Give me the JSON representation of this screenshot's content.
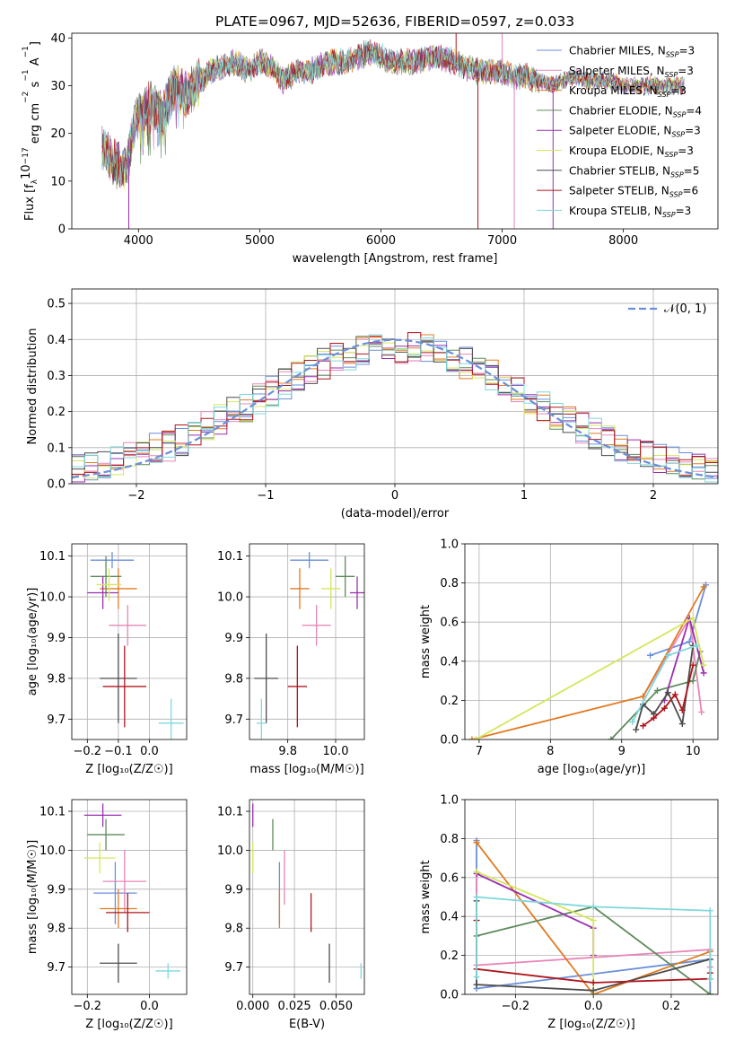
{
  "colors": {
    "Chabrier MILES": "#6a8fdc",
    "Salpeter MILES": "#e985b8",
    "Kroupa MILES": "#e07b22",
    "Chabrier ELODIE": "#5f8a5c",
    "Salpeter ELODIE": "#9a2fb0",
    "Kroupa ELODIE": "#d6e65c",
    "Chabrier STELIB": "#4d4d4d",
    "Salpeter STELIB": "#b0161c",
    "Kroupa STELIB": "#7fd8dc",
    "normal_curve": "#6a8fdc",
    "grid": "#b0b0b0"
  },
  "chart_data": [
    {
      "id": "spectrum",
      "type": "line",
      "title": "PLATE=0967, MJD=52636, FIBERID=0597, z=0.033",
      "xlabel": "wavelength [Angstrom, rest frame]",
      "ylabel_parts": [
        "Flux [f",
        "λ",
        "10",
        "−17",
        " erg cm",
        "−2",
        " s",
        "−1",
        " A",
        "−1",
        "]"
      ],
      "xlim": [
        3450,
        8780
      ],
      "ylim": [
        0,
        41
      ],
      "xticks": [
        4000,
        5000,
        6000,
        7000,
        8000
      ],
      "yticks": [
        0,
        10,
        20,
        30,
        40
      ],
      "grid": false,
      "legend_position": "top-right",
      "legend": [
        {
          "base": "Chabrier MILES, N",
          "sub": "SSP",
          "tail": "=3"
        },
        {
          "base": "Salpeter MILES, N",
          "sub": "SSP",
          "tail": "=3"
        },
        {
          "base": "Kroupa MILES, N",
          "sub": "SSP",
          "tail": "=3"
        },
        {
          "base": "Chabrier ELODIE, N",
          "sub": "SSP",
          "tail": "=4"
        },
        {
          "base": "Salpeter ELODIE, N",
          "sub": "SSP",
          "tail": "=3"
        },
        {
          "base": "Kroupa ELODIE, N",
          "sub": "SSP",
          "tail": "=3"
        },
        {
          "base": "Chabrier STELIB, N",
          "sub": "SSP",
          "tail": "=5"
        },
        {
          "base": "Salpeter STELIB, N",
          "sub": "SSP",
          "tail": "=6"
        },
        {
          "base": "Kroupa STELIB, N",
          "sub": "SSP",
          "tail": "=3"
        }
      ],
      "envelope": {
        "x": [
          3700,
          3800,
          3900,
          3950,
          4000,
          4100,
          4200,
          4300,
          4400,
          4500,
          4600,
          4700,
          4800,
          4900,
          5000,
          5100,
          5200,
          5300,
          5400,
          5500,
          5600,
          5700,
          5800,
          5900,
          6000,
          6100,
          6200,
          6300,
          6400,
          6500,
          6600,
          6700,
          6800,
          6900,
          7000,
          7100,
          7200,
          7300,
          7400,
          7500,
          7600,
          7700,
          7800,
          7900,
          8000,
          8100,
          8200,
          8300,
          8400,
          8500
        ],
        "y": [
          17,
          14,
          12,
          20,
          24,
          26,
          24,
          30,
          28,
          31,
          33,
          34,
          35,
          33,
          35,
          34,
          31,
          33,
          33,
          34,
          35,
          35,
          36,
          37,
          36,
          35,
          35,
          35,
          36,
          36,
          35,
          34,
          33,
          33,
          33,
          32,
          32,
          31,
          30,
          31,
          32,
          31,
          31,
          31,
          30,
          30,
          30,
          30,
          30,
          30
        ]
      },
      "outliers": [
        {
          "x": 3920,
          "y": 0
        },
        {
          "x": 6800,
          "y": 0
        },
        {
          "x": 7100,
          "y": 0
        },
        {
          "x": 7420,
          "y": 0
        },
        {
          "x": 6620,
          "y": 41
        },
        {
          "x": 7000,
          "y": 41
        }
      ]
    },
    {
      "id": "residuals",
      "type": "histogram",
      "xlabel": "(data-model)/error",
      "ylabel": "Normed distribution",
      "xlim": [
        -2.5,
        2.5
      ],
      "ylim": [
        0,
        0.54
      ],
      "xticks": [
        -2,
        -1,
        0,
        1,
        2
      ],
      "yticks": [
        0.0,
        0.1,
        0.2,
        0.3,
        0.4,
        0.5
      ],
      "grid": true,
      "bin_width": 0.1,
      "legend_position": "top-right",
      "reference_curve": {
        "name": "𝒩(0, 1)",
        "mean": 0,
        "sigma": 1
      }
    },
    {
      "id": "age_vs_Z",
      "type": "scatter",
      "xlabel": "Z [log₁₀(Z/Z☉)]",
      "ylabel": "age  [log₁₀(age/yr)]",
      "xlim": [
        -0.25,
        0.12
      ],
      "ylim": [
        9.65,
        10.13
      ],
      "xticks": [
        -0.2,
        -0.1,
        0.0
      ],
      "yticks": [
        9.7,
        9.8,
        9.9,
        10.0,
        10.1
      ],
      "grid": true,
      "points": [
        {
          "series": "Chabrier MILES",
          "x": -0.12,
          "y": 10.09,
          "xerr": 0.07,
          "yerr": 0.02
        },
        {
          "series": "Salpeter MILES",
          "x": -0.07,
          "y": 9.93,
          "xerr": 0.06,
          "yerr": 0.05
        },
        {
          "series": "Kroupa MILES",
          "x": -0.1,
          "y": 10.02,
          "xerr": 0.06,
          "yerr": 0.05
        },
        {
          "series": "Chabrier ELODIE",
          "x": -0.14,
          "y": 10.05,
          "xerr": 0.05,
          "yerr": 0.05
        },
        {
          "series": "Salpeter ELODIE",
          "x": -0.15,
          "y": 10.01,
          "xerr": 0.05,
          "yerr": 0.04
        },
        {
          "series": "Kroupa ELODIE",
          "x": -0.13,
          "y": 10.03,
          "xerr": 0.04,
          "yerr": 0.04
        },
        {
          "series": "Chabrier STELIB",
          "x": -0.1,
          "y": 9.8,
          "xerr": 0.06,
          "yerr": 0.11
        },
        {
          "series": "Salpeter STELIB",
          "x": -0.08,
          "y": 9.78,
          "xerr": 0.07,
          "yerr": 0.1
        },
        {
          "series": "Kroupa STELIB",
          "x": 0.07,
          "y": 9.69,
          "xerr": 0.04,
          "yerr": 0.06
        }
      ]
    },
    {
      "id": "age_vs_mass",
      "type": "scatter",
      "xlabel": "mass [log₁₀(M/M☉)]",
      "ylabel": "",
      "xlim": [
        9.64,
        10.12
      ],
      "ylim": [
        9.65,
        10.13
      ],
      "xticks": [
        9.8,
        10.0
      ],
      "yticks": [
        9.7,
        9.8,
        9.9,
        10.0,
        10.1
      ],
      "grid": true,
      "points": [
        {
          "series": "Chabrier MILES",
          "x": 9.89,
          "y": 10.09,
          "xerr": 0.08,
          "yerr": 0.02
        },
        {
          "series": "Salpeter MILES",
          "x": 9.92,
          "y": 9.93,
          "xerr": 0.06,
          "yerr": 0.05
        },
        {
          "series": "Kroupa MILES",
          "x": 9.85,
          "y": 10.02,
          "xerr": 0.04,
          "yerr": 0.05
        },
        {
          "series": "Chabrier ELODIE",
          "x": 10.04,
          "y": 10.05,
          "xerr": 0.04,
          "yerr": 0.05
        },
        {
          "series": "Salpeter ELODIE",
          "x": 10.09,
          "y": 10.01,
          "xerr": 0.03,
          "yerr": 0.04
        },
        {
          "series": "Kroupa ELODIE",
          "x": 9.98,
          "y": 10.02,
          "xerr": 0.04,
          "yerr": 0.05
        },
        {
          "series": "Chabrier STELIB",
          "x": 9.71,
          "y": 9.8,
          "xerr": 0.05,
          "yerr": 0.11
        },
        {
          "series": "Salpeter STELIB",
          "x": 9.84,
          "y": 9.78,
          "xerr": 0.04,
          "yerr": 0.1
        },
        {
          "series": "Kroupa STELIB",
          "x": 9.69,
          "y": 9.69,
          "xerr": 0.02,
          "yerr": 0.06
        }
      ]
    },
    {
      "id": "weight_vs_age",
      "type": "line",
      "xlabel": "age  [log₁₀(age/yr)]",
      "ylabel": "mass weight",
      "xlim": [
        6.8,
        10.35
      ],
      "ylim": [
        0,
        1.0
      ],
      "xticks": [
        7,
        8,
        9,
        10
      ],
      "yticks": [
        0.0,
        0.2,
        0.4,
        0.6,
        0.8,
        1.0
      ],
      "grid": true,
      "series": [
        {
          "name": "Chabrier MILES",
          "x": [
            9.4,
            9.95,
            10.18
          ],
          "y": [
            0.43,
            0.5,
            0.79
          ]
        },
        {
          "name": "Salpeter MILES",
          "x": [
            9.3,
            9.95,
            10.12
          ],
          "y": [
            0.22,
            0.62,
            0.14
          ]
        },
        {
          "name": "Kroupa MILES",
          "x": [
            6.9,
            9.3,
            10.15
          ],
          "y": [
            0.0,
            0.22,
            0.78
          ]
        },
        {
          "name": "Chabrier ELODIE",
          "x": [
            8.85,
            9.5,
            10.0,
            10.1
          ],
          "y": [
            0.0,
            0.25,
            0.3,
            0.45
          ]
        },
        {
          "name": "Salpeter ELODIE",
          "x": [
            9.6,
            9.95,
            10.15
          ],
          "y": [
            0.2,
            0.62,
            0.34
          ]
        },
        {
          "name": "Kroupa ELODIE",
          "x": [
            6.95,
            10.0,
            10.15
          ],
          "y": [
            0.0,
            0.62,
            0.38
          ]
        },
        {
          "name": "Chabrier STELIB",
          "x": [
            9.2,
            9.3,
            9.45,
            9.65,
            9.85,
            10.0
          ],
          "y": [
            0.05,
            0.18,
            0.13,
            0.24,
            0.08,
            0.48
          ]
        },
        {
          "name": "Salpeter STELIB",
          "x": [
            9.3,
            9.45,
            9.6,
            9.75,
            9.85,
            10.0
          ],
          "y": [
            0.07,
            0.11,
            0.16,
            0.23,
            0.15,
            0.38
          ]
        },
        {
          "name": "Kroupa STELIB",
          "x": [
            9.15,
            9.65,
            10.05
          ],
          "y": [
            0.09,
            0.43,
            0.48
          ]
        }
      ]
    },
    {
      "id": "mass_vs_Z",
      "type": "scatter",
      "xlabel": "Z [log₁₀(Z/Z☉)]",
      "ylabel": "mass [log₁₀(M/M☉)]",
      "xlim": [
        -0.25,
        0.12
      ],
      "ylim": [
        9.63,
        10.13
      ],
      "xticks": [
        -0.2,
        0.0
      ],
      "yticks": [
        9.7,
        9.8,
        9.9,
        10.0,
        10.1
      ],
      "grid": true,
      "points": [
        {
          "series": "Chabrier MILES",
          "x": -0.11,
          "y": 9.89,
          "xerr": 0.07,
          "yerr": 0.08
        },
        {
          "series": "Salpeter MILES",
          "x": -0.08,
          "y": 9.92,
          "xerr": 0.07,
          "yerr": 0.08
        },
        {
          "series": "Kroupa MILES",
          "x": -0.1,
          "y": 9.85,
          "xerr": 0.06,
          "yerr": 0.05
        },
        {
          "series": "Chabrier ELODIE",
          "x": -0.14,
          "y": 10.04,
          "xerr": 0.06,
          "yerr": 0.04
        },
        {
          "series": "Salpeter ELODIE",
          "x": -0.15,
          "y": 10.09,
          "xerr": 0.06,
          "yerr": 0.03
        },
        {
          "series": "Kroupa ELODIE",
          "x": -0.16,
          "y": 9.98,
          "xerr": 0.05,
          "yerr": 0.04
        },
        {
          "series": "Chabrier STELIB",
          "x": -0.1,
          "y": 9.71,
          "xerr": 0.06,
          "yerr": 0.05
        },
        {
          "series": "Salpeter STELIB",
          "x": -0.07,
          "y": 9.84,
          "xerr": 0.07,
          "yerr": 0.05
        },
        {
          "series": "Kroupa STELIB",
          "x": 0.06,
          "y": 9.69,
          "xerr": 0.04,
          "yerr": 0.02
        }
      ]
    },
    {
      "id": "mass_vs_ebv",
      "type": "scatter",
      "xlabel": "E(B-V)",
      "ylabel": "",
      "xlim": [
        -0.002,
        0.067
      ],
      "ylim": [
        9.63,
        10.13
      ],
      "xticks": [
        0.0,
        0.025,
        0.05
      ],
      "xtick_labels": [
        "0.000",
        "0.025",
        "0.050"
      ],
      "yticks": [
        9.7,
        9.8,
        9.9,
        10.0,
        10.1
      ],
      "grid": true,
      "points": [
        {
          "series": "Chabrier MILES",
          "x": 0.016,
          "y": 9.89,
          "xerr": 0,
          "yerr": 0.08
        },
        {
          "series": "Salpeter MILES",
          "x": 0.019,
          "y": 9.93,
          "xerr": 0,
          "yerr": 0.07
        },
        {
          "series": "Kroupa MILES",
          "x": 0.016,
          "y": 9.85,
          "xerr": 0,
          "yerr": 0.05
        },
        {
          "series": "Chabrier ELODIE",
          "x": 0.012,
          "y": 10.04,
          "xerr": 0,
          "yerr": 0.04
        },
        {
          "series": "Salpeter ELODIE",
          "x": 0.0,
          "y": 10.09,
          "xerr": 0,
          "yerr": 0.03
        },
        {
          "series": "Kroupa ELODIE",
          "x": 0.0,
          "y": 9.98,
          "xerr": 0,
          "yerr": 0.04
        },
        {
          "series": "Chabrier STELIB",
          "x": 0.046,
          "y": 9.71,
          "xerr": 0,
          "yerr": 0.05
        },
        {
          "series": "Salpeter STELIB",
          "x": 0.035,
          "y": 9.84,
          "xerr": 0,
          "yerr": 0.05
        },
        {
          "series": "Kroupa STELIB",
          "x": 0.065,
          "y": 9.69,
          "xerr": 0,
          "yerr": 0.02
        }
      ]
    },
    {
      "id": "weight_vs_Z",
      "type": "line",
      "xlabel": "Z [log₁₀(Z/Z☉)]",
      "ylabel": "mass weight",
      "xlim": [
        -0.33,
        0.32
      ],
      "ylim": [
        0,
        1.0
      ],
      "xticks": [
        -0.2,
        0.0,
        0.2
      ],
      "yticks": [
        0.0,
        0.2,
        0.4,
        0.6,
        0.8,
        1.0
      ],
      "grid": true,
      "series": [
        {
          "name": "Chabrier MILES",
          "x": [
            -0.3,
            -0.3,
            0.3,
            0.3
          ],
          "y": [
            0.79,
            0.03,
            0.18,
            0.0
          ]
        },
        {
          "name": "Salpeter MILES",
          "x": [
            -0.3,
            -0.3,
            0.3,
            0.3
          ],
          "y": [
            0.62,
            0.15,
            0.23,
            0.14
          ]
        },
        {
          "name": "Kroupa MILES",
          "x": [
            -0.3,
            0.0,
            0.3
          ],
          "y": [
            0.78,
            0.0,
            0.22
          ]
        },
        {
          "name": "Chabrier ELODIE",
          "x": [
            -0.3,
            0.0,
            0.3
          ],
          "y": [
            0.3,
            0.45,
            0.0
          ]
        },
        {
          "name": "Salpeter ELODIE",
          "x": [
            -0.3,
            0.0,
            0.0
          ],
          "y": [
            0.62,
            0.34,
            0.2
          ]
        },
        {
          "name": "Kroupa ELODIE",
          "x": [
            -0.3,
            0.0,
            0.0
          ],
          "y": [
            0.63,
            0.38,
            0.0
          ]
        },
        {
          "name": "Chabrier STELIB",
          "x": [
            -0.3,
            -0.3,
            0.0,
            0.3,
            0.3
          ],
          "y": [
            0.48,
            0.05,
            0.02,
            0.18,
            0.08
          ]
        },
        {
          "name": "Salpeter STELIB",
          "x": [
            -0.3,
            -0.3,
            0.0,
            0.3,
            0.3
          ],
          "y": [
            0.38,
            0.13,
            0.06,
            0.08,
            0.11
          ]
        },
        {
          "name": "Kroupa STELIB",
          "x": [
            -0.3,
            -0.3,
            0.0,
            0.3,
            0.3
          ],
          "y": [
            0.09,
            0.5,
            0.45,
            0.43,
            0.08
          ]
        }
      ]
    }
  ]
}
